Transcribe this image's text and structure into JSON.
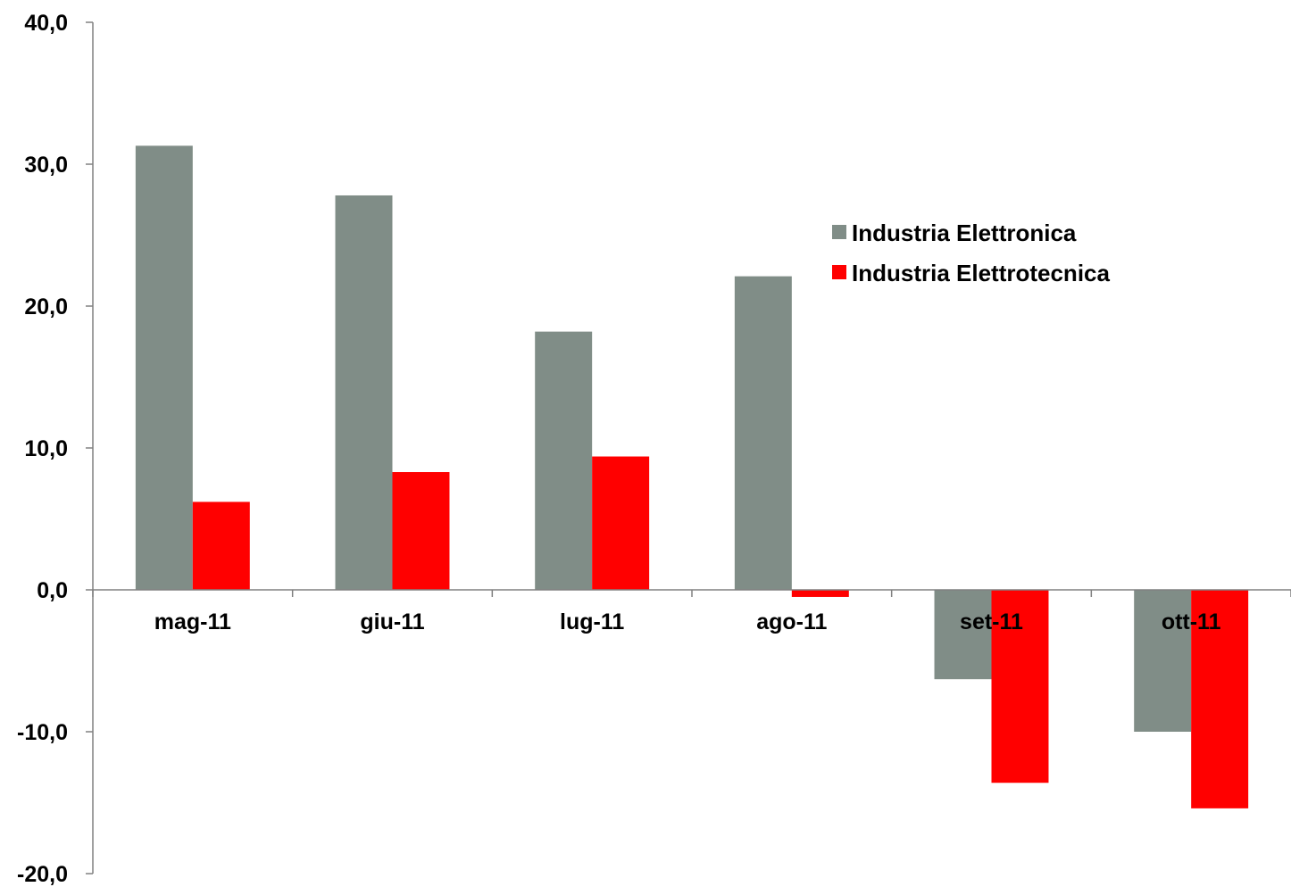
{
  "chart_data": {
    "type": "bar",
    "title": "",
    "xlabel": "",
    "ylabel": "",
    "categories": [
      "mag-11",
      "giu-11",
      "lug-11",
      "ago-11",
      "set-11",
      "ott-11"
    ],
    "series": [
      {
        "name": "Industria Elettronica",
        "color": "#808d87",
        "values": [
          31.3,
          27.8,
          18.2,
          22.1,
          -6.3,
          -10.0
        ]
      },
      {
        "name": "Industria Elettrotecnica",
        "color": "#ff0000",
        "values": [
          6.2,
          8.3,
          9.4,
          -0.5,
          -13.6,
          -15.4
        ]
      }
    ],
    "ylim": [
      -20,
      40
    ],
    "yticks": [
      40,
      30,
      20,
      10,
      0,
      -10,
      -20
    ],
    "ytick_labels": [
      "40,0",
      "30,0",
      "20,0",
      "10,0",
      "0,0",
      "-10,0",
      "-20,0"
    ],
    "grid": false,
    "legend_position": "upper-right"
  }
}
